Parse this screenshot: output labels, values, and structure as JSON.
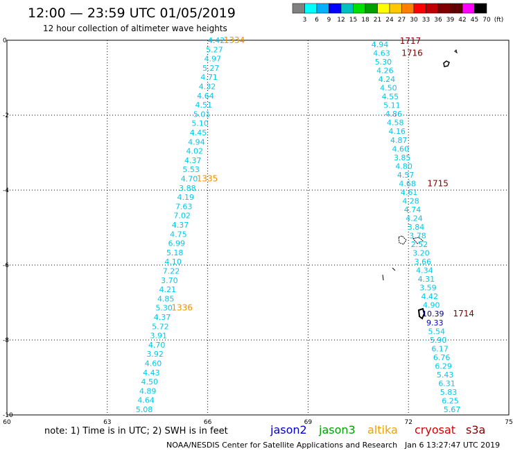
{
  "header": {
    "title": "12:00 — 23:59 UTC 01/05/2019",
    "subtitle": "12 hour collection of altimeter wave heights"
  },
  "colorbar": {
    "colors": [
      "#808080",
      "#00ffff",
      "#00b0ff",
      "#0000ff",
      "#00c0c0",
      "#00e000",
      "#00a000",
      "#ffff00",
      "#ffc800",
      "#ff8000",
      "#ff0000",
      "#c00000",
      "#800000",
      "#600000",
      "#ff00ff",
      "#000000"
    ],
    "labels": [
      "3",
      "6",
      "9",
      "12",
      "15",
      "18",
      "21",
      "24",
      "27",
      "30",
      "33",
      "36",
      "39",
      "42",
      "45",
      "70",
      "(ft)"
    ]
  },
  "axes": {
    "x_ticks": [
      "60",
      "63",
      "66",
      "69",
      "72",
      "75"
    ],
    "y_ticks": [
      "0",
      "-2",
      "-4",
      "-6",
      "-8",
      "-10"
    ]
  },
  "tracks": [
    {
      "id": "track-west",
      "color": "#00c8e8",
      "values": [
        "4.42",
        "5.27",
        "4.97",
        "5.27",
        "4.71",
        "4.32",
        "4.64",
        "4.51",
        "5.01",
        "5.10",
        "4.45",
        "4.94",
        "4.02",
        "4.37",
        "5.53",
        "4.70",
        "3.88",
        "4.19",
        "7.63",
        "7.02",
        "4.37",
        "4.75",
        "6.99",
        "5.18",
        "4.10",
        "7.22",
        "3.70",
        "4.21",
        "4.85",
        "5.30",
        "4.37",
        "5.72",
        "3.91",
        "4.70",
        "3.92",
        "4.60",
        "4.43",
        "4.50",
        "4.89",
        "4.64",
        "5.08"
      ],
      "times": [
        {
          "label": "1334",
          "color": "#f09000",
          "index": 0
        },
        {
          "label": "1335",
          "color": "#f09000",
          "index": 15
        },
        {
          "label": "1336",
          "color": "#f09000",
          "index": 29
        }
      ]
    },
    {
      "id": "track-east",
      "color": "#00c8e8",
      "values": [
        "4.94",
        "4.63",
        "5.30",
        "4.26",
        "4.24",
        "4.50",
        "4.55",
        "5.11",
        "4.86",
        "4.58",
        "4.16",
        "4.87",
        "4.60",
        "3.85",
        "4.80",
        "4.57",
        "4.68",
        "4.61",
        "4.28",
        "4.74",
        "4.24",
        "3.84",
        "3.78",
        "2.52",
        "3.20",
        "3.66",
        "4.34",
        "4.31",
        "3.59",
        "4.42",
        "4.90",
        "10.39",
        "9.33",
        "5.54",
        "5.90",
        "6.17",
        "6.76",
        "6.29",
        "5.43",
        "6.31",
        "5.83",
        "6.25",
        "5.67"
      ],
      "highlight": {
        "10.39": "#000080",
        "9.33": "#0000c0"
      },
      "times": [
        {
          "label": "1717",
          "color": "#800000",
          "index": 0
        },
        {
          "label": "1716",
          "color": "#800000",
          "index": 1
        },
        {
          "label": "1715",
          "color": "#800000",
          "index": 16
        },
        {
          "label": "1714",
          "color": "#800000",
          "index": 31
        }
      ]
    }
  ],
  "legend": {
    "note": "note: 1) Time is in UTC; 2) SWH is in feet",
    "satellites": [
      {
        "name": "jason2",
        "color": "#0000c8"
      },
      {
        "name": "jason3",
        "color": "#00a000"
      },
      {
        "name": "altika",
        "color": "#f0a000"
      },
      {
        "name": "cryosat",
        "color": "#d00000"
      },
      {
        "name": "s3a",
        "color": "#800000"
      }
    ]
  },
  "footer": {
    "credit": "NOAA/NESDIS Center for Satellite Applications and Research",
    "timestamp": "Jan  6 13:27:47 UTC 2019"
  }
}
